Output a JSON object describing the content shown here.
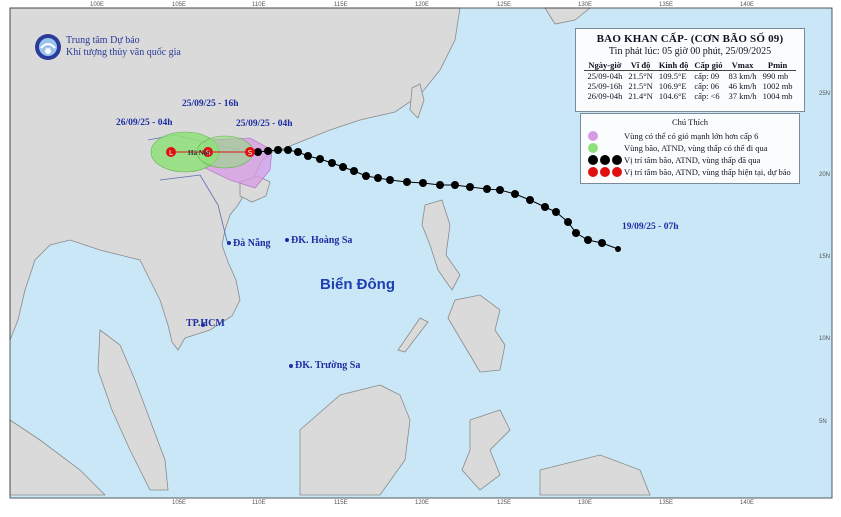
{
  "header": {
    "title": "BAO KHAN CẤP- (CƠN BÃO SỐ 09)",
    "issued": "Tin phát lúc: 05 giờ 00 phút, 25/09/2025",
    "columns": [
      "Ngày-giờ",
      "Vĩ độ",
      "Kinh độ",
      "Cấp gió",
      "Vmax",
      "Pmin"
    ],
    "rows": [
      [
        "25/09-04h",
        "21.5°N",
        "109.5°E",
        "cấp: 09",
        "83 km/h",
        "990 mb"
      ],
      [
        "25/09-16h",
        "21.5°N",
        "106.9°E",
        "cấp: 06",
        "46 km/h",
        "1002 mb"
      ],
      [
        "26/09-04h",
        "21.4°N",
        "104.6°E",
        "cấp: <6",
        "37 km/h",
        "1004 mb"
      ]
    ]
  },
  "legend": {
    "title": "Chú Thích",
    "items": [
      {
        "text": "Vùng có thể có gió mạnh lớn hơn cấp 6",
        "color": "#d79be6"
      },
      {
        "text": "Vùng bão, ATND, vùng thấp có thể đi qua",
        "color": "#8fe07a"
      },
      {
        "text": "Vị trí tâm bão, ATND, vùng thấp đã qua",
        "color": "#000000"
      },
      {
        "text": "Vị trí tâm bão, ATND, vùng thấp hiện tại, dự báo",
        "color": "#e01010"
      }
    ]
  },
  "org": {
    "line1": "Trung tâm Dự báo",
    "line2": "Khí tượng thủy văn quốc gia"
  },
  "map_labels": {
    "time_26_04": "26/09/25 - 04h",
    "time_25_16": "25/09/25 - 16h",
    "time_25_04": "25/09/25 - 04h",
    "time_19_07": "19/09/25 - 07h",
    "danang": "Đà Nẵng",
    "hoangsa": "ĐK. Hoàng Sa",
    "hcm": "TP.HCM",
    "truongsa": "ĐK. Trường Sa",
    "sea": "Biển Đông",
    "hn": "Hà Nội"
  },
  "ticks_top": [
    "100E",
    "105E",
    "110E",
    "115E",
    "120E",
    "125E",
    "130E",
    "135E",
    "140E"
  ],
  "ticks_bottom": [
    "105E",
    "110E",
    "115E",
    "120E",
    "125E",
    "130E",
    "135E",
    "140E"
  ],
  "ticks_right": [
    "25N",
    "20N",
    "15N",
    "10N",
    "5N"
  ],
  "colors": {
    "sea": "#c9e7f7",
    "land": "#dadada",
    "track_past": "#000000",
    "track_forecast": "#e01010",
    "pink_zone": "#d79be6",
    "green_zone": "#8fe07a"
  }
}
